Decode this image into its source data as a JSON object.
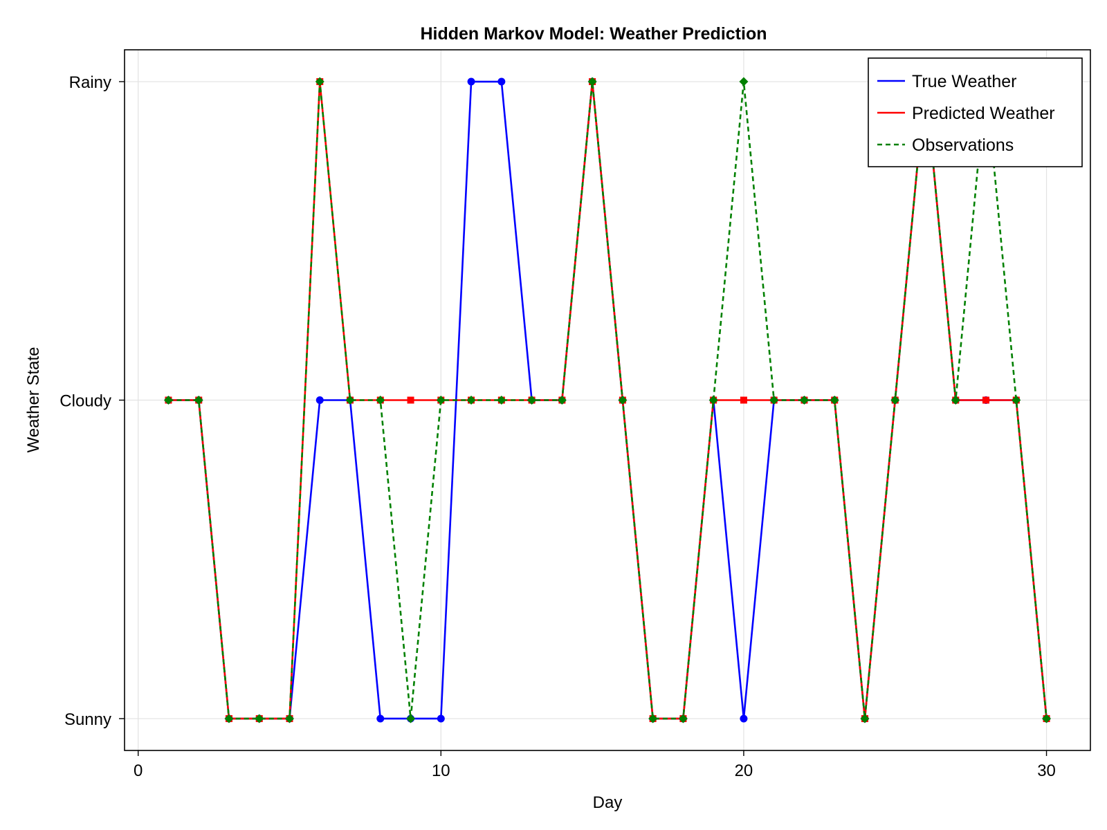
{
  "chart_data": {
    "type": "line",
    "title": "Hidden Markov Model: Weather Prediction",
    "xlabel": "Day",
    "ylabel": "Weather State",
    "xlim": [
      -0.45,
      31.45
    ],
    "ylim": [
      0.9,
      3.1
    ],
    "xticks": [
      0,
      10,
      20,
      30
    ],
    "xtick_labels": [
      "0",
      "10",
      "20",
      "30"
    ],
    "yticks": [
      1,
      2,
      3
    ],
    "ytick_labels": [
      "Sunny",
      "Cloudy",
      "Rainy"
    ],
    "grid": true,
    "legend_position": "top-right",
    "x": [
      1,
      2,
      3,
      4,
      5,
      6,
      7,
      8,
      9,
      10,
      11,
      12,
      13,
      14,
      15,
      16,
      17,
      18,
      19,
      20,
      21,
      22,
      23,
      24,
      25,
      26,
      27,
      28,
      29,
      30
    ],
    "series": [
      {
        "name": "True Weather",
        "color": "#0000ff",
        "dash": "solid",
        "marker": "circle",
        "values": [
          2,
          2,
          1,
          1,
          1,
          2,
          2,
          1,
          1,
          1,
          3,
          3,
          2,
          2,
          3,
          2,
          1,
          1,
          2,
          1,
          2,
          2,
          2,
          1,
          2,
          3,
          2,
          2,
          2,
          1
        ]
      },
      {
        "name": "Predicted Weather",
        "color": "#ff0000",
        "dash": "solid",
        "marker": "square",
        "values": [
          2,
          2,
          1,
          1,
          1,
          3,
          2,
          2,
          2,
          2,
          2,
          2,
          2,
          2,
          3,
          2,
          1,
          1,
          2,
          2,
          2,
          2,
          2,
          1,
          2,
          3,
          2,
          2,
          2,
          1
        ]
      },
      {
        "name": "Observations",
        "color": "#008000",
        "dash": "dashed",
        "marker": "diamond",
        "values": [
          2,
          2,
          1,
          1,
          1,
          3,
          2,
          2,
          1,
          2,
          2,
          2,
          2,
          2,
          3,
          2,
          1,
          1,
          2,
          3,
          2,
          2,
          2,
          1,
          2,
          3,
          2,
          3,
          2,
          1
        ]
      }
    ]
  }
}
